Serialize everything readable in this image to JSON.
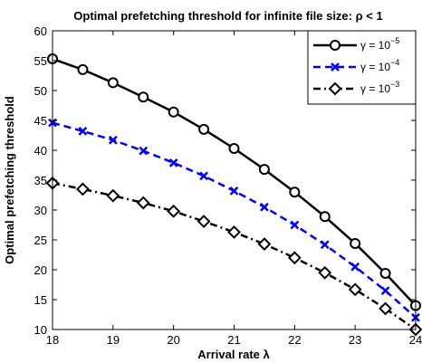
{
  "chart_data": {
    "type": "line",
    "title": "Optimal prefetching threshold for infinite file size: ρ < 1",
    "xlabel": "Arrival rate λ",
    "ylabel": "Optimal prefetching threshold",
    "xlim": [
      18,
      24
    ],
    "ylim": [
      10,
      60
    ],
    "xticks": [
      "18",
      "19",
      "20",
      "21",
      "22",
      "23",
      "24"
    ],
    "yticks": [
      "10",
      "15",
      "20",
      "25",
      "30",
      "35",
      "40",
      "45",
      "50",
      "55",
      "60"
    ],
    "grid": false,
    "legend_position": "top-right",
    "x": [
      18,
      18.5,
      19,
      19.5,
      20,
      20.5,
      21,
      21.5,
      22,
      22.5,
      23,
      23.5,
      24
    ],
    "series": [
      {
        "name": "γ = 10^-5",
        "legend_base": "γ = 10",
        "legend_exp": "−5",
        "color": "#000000",
        "line_style": "solid",
        "marker": "circle",
        "values": [
          55.3,
          53.5,
          51.3,
          48.9,
          46.4,
          43.5,
          40.3,
          36.8,
          33.0,
          28.9,
          24.4,
          19.4,
          14.0
        ]
      },
      {
        "name": "γ = 10^-4",
        "legend_base": "γ = 10",
        "legend_exp": "−4",
        "color": "#0000ff",
        "line_style": "dashed",
        "marker": "x",
        "values": [
          44.6,
          43.2,
          41.7,
          39.9,
          37.9,
          35.7,
          33.2,
          30.5,
          27.5,
          24.2,
          20.5,
          16.5,
          12.0
        ]
      },
      {
        "name": "γ = 10^-3",
        "legend_base": "γ = 10",
        "legend_exp": "−3",
        "color": "#000000",
        "line_style": "dashdot",
        "marker": "diamond",
        "values": [
          34.5,
          33.5,
          32.4,
          31.2,
          29.8,
          28.1,
          26.3,
          24.3,
          22.0,
          19.5,
          16.7,
          13.5,
          10.0
        ]
      }
    ]
  }
}
